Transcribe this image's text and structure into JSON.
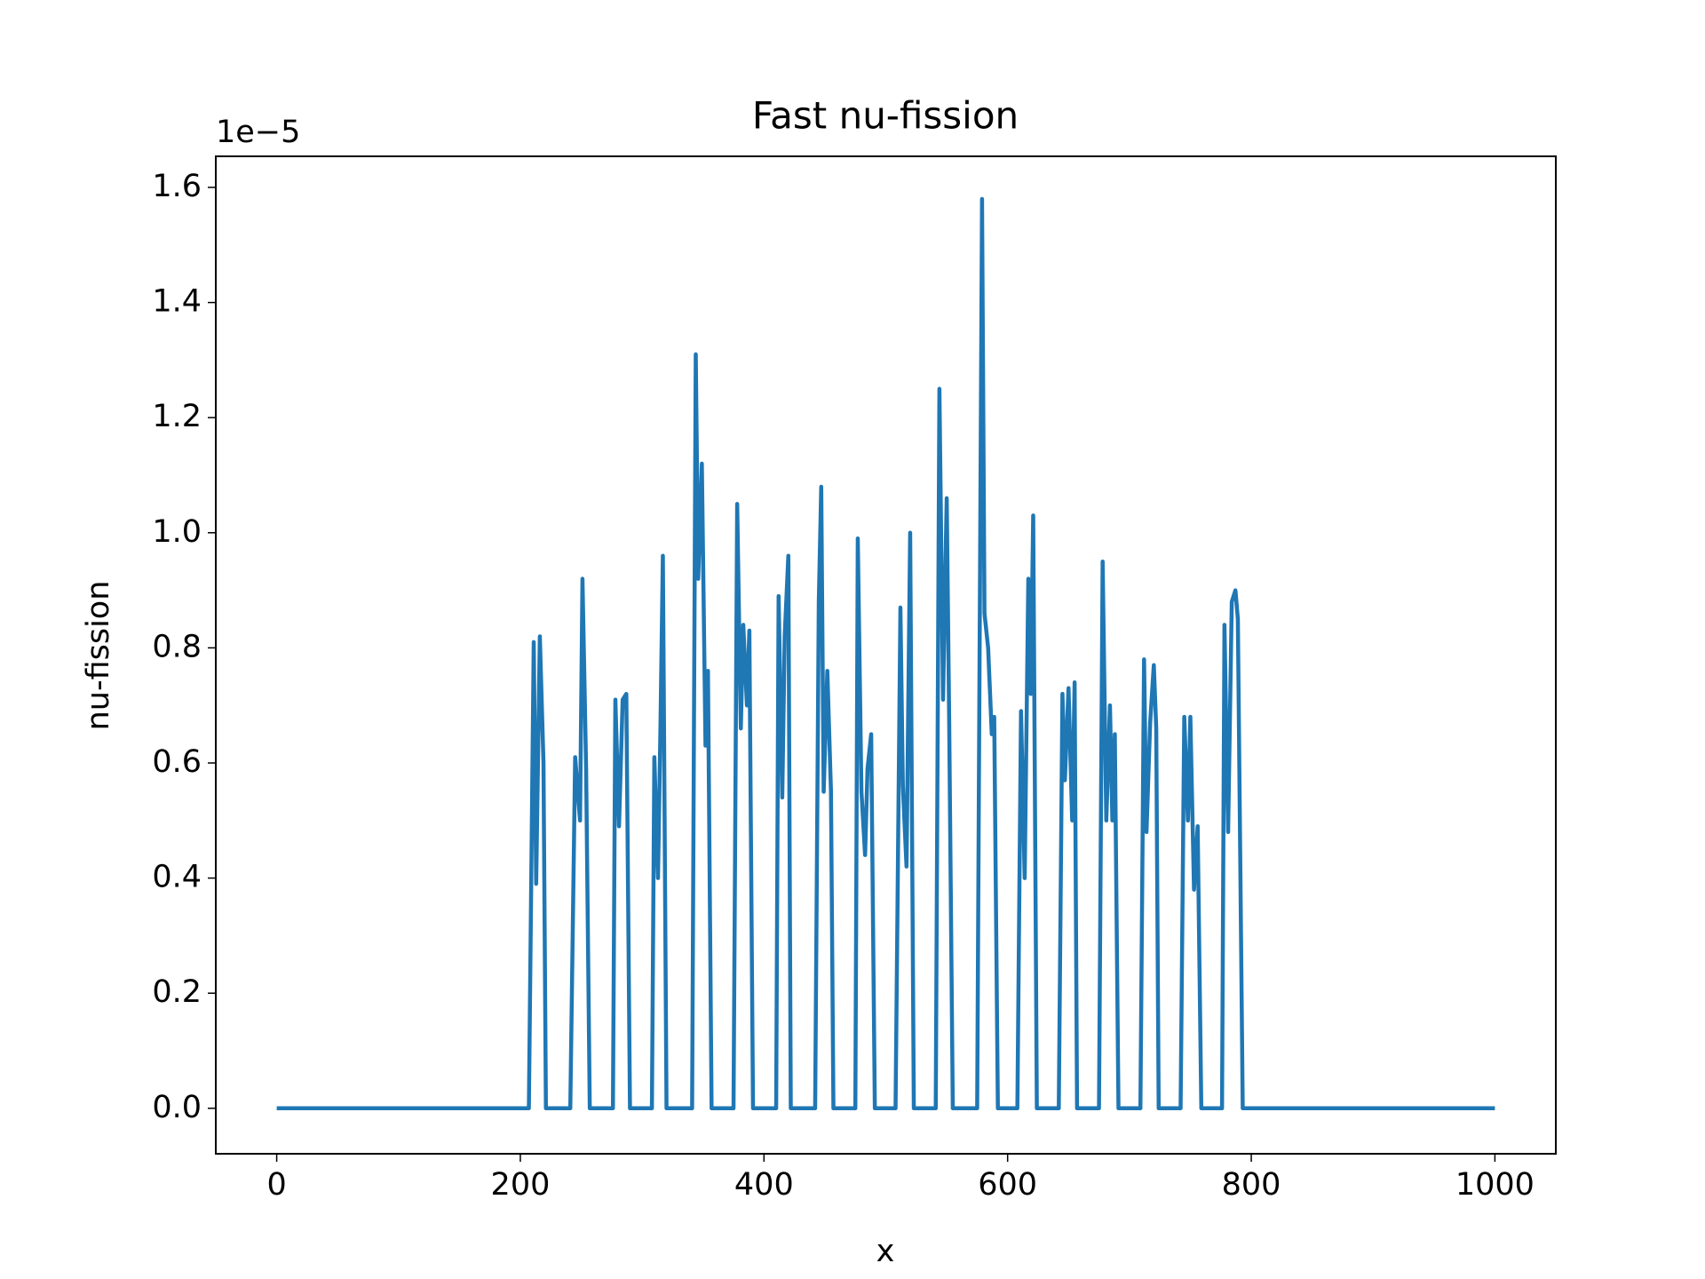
{
  "chart_data": {
    "type": "line",
    "title": "Fast nu-fission",
    "x_label": "x",
    "y_label": "nu-fission",
    "y_offset_label": "1e−5",
    "xlim": [
      -50,
      1050
    ],
    "xticks": [
      0,
      200,
      400,
      600,
      800,
      1000
    ],
    "ylim": [
      -0.079,
      1.654
    ],
    "yticks": [
      {
        "value": 0,
        "label": "0.0"
      },
      0.2,
      0.4,
      0.6,
      0.8,
      {
        "value": 1,
        "label": "1.0"
      },
      1.2,
      1.4,
      1.6
    ],
    "grid": false,
    "series": [
      {
        "color": "#1f77b4",
        "x": [
          0,
          207,
          211,
          213,
          216,
          219,
          221,
          241,
          245,
          249,
          251,
          254,
          257,
          276,
          278,
          281,
          284,
          287,
          290,
          308,
          310,
          313,
          315,
          317,
          320,
          341,
          344,
          346,
          349,
          352,
          354,
          355,
          357,
          375,
          378,
          381,
          383,
          386,
          388,
          391,
          410,
          412,
          415,
          417,
          420,
          422,
          442,
          445,
          447,
          449,
          452,
          455,
          457,
          475,
          477,
          480,
          483,
          485,
          488,
          491,
          508,
          512,
          514,
          517,
          520,
          523,
          541,
          544,
          547,
          550,
          552,
          555,
          575,
          579,
          581,
          584,
          587,
          589,
          592,
          608,
          611,
          614,
          617,
          619,
          621,
          624,
          642,
          645,
          647,
          650,
          653,
          655,
          657,
          675,
          678,
          681,
          684,
          686,
          688,
          691,
          709,
          712,
          714,
          717,
          720,
          722,
          724,
          742,
          745,
          748,
          750,
          753,
          756,
          759,
          776,
          778,
          781,
          784,
          787,
          789,
          793,
          1000
        ],
        "values": [
          0,
          0,
          0.81,
          0.39,
          0.82,
          0.6,
          0,
          0,
          0.61,
          0.5,
          0.92,
          0.59,
          0,
          0,
          0.71,
          0.49,
          0.71,
          0.72,
          0,
          0,
          0.61,
          0.4,
          0.66,
          0.96,
          0,
          0,
          1.31,
          0.92,
          1.12,
          0.63,
          0.76,
          0.51,
          0,
          0,
          1.05,
          0.66,
          0.84,
          0.7,
          0.83,
          0,
          0,
          0.89,
          0.54,
          0.82,
          0.96,
          0,
          0,
          0.88,
          1.08,
          0.55,
          0.76,
          0.55,
          0,
          0,
          0.99,
          0.55,
          0.44,
          0.59,
          0.65,
          0,
          0,
          0.87,
          0.56,
          0.42,
          1.0,
          0,
          0,
          1.25,
          0.71,
          1.06,
          0.68,
          0,
          0,
          1.58,
          0.86,
          0.8,
          0.65,
          0.68,
          0,
          0,
          0.69,
          0.4,
          0.92,
          0.72,
          1.03,
          0,
          0,
          0.72,
          0.57,
          0.73,
          0.5,
          0.74,
          0,
          0,
          0.95,
          0.5,
          0.7,
          0.5,
          0.65,
          0,
          0,
          0.78,
          0.48,
          0.67,
          0.77,
          0.66,
          0,
          0,
          0.68,
          0.5,
          0.68,
          0.38,
          0.49,
          0,
          0,
          0.84,
          0.48,
          0.88,
          0.9,
          0.85,
          0,
          0
        ]
      }
    ]
  }
}
